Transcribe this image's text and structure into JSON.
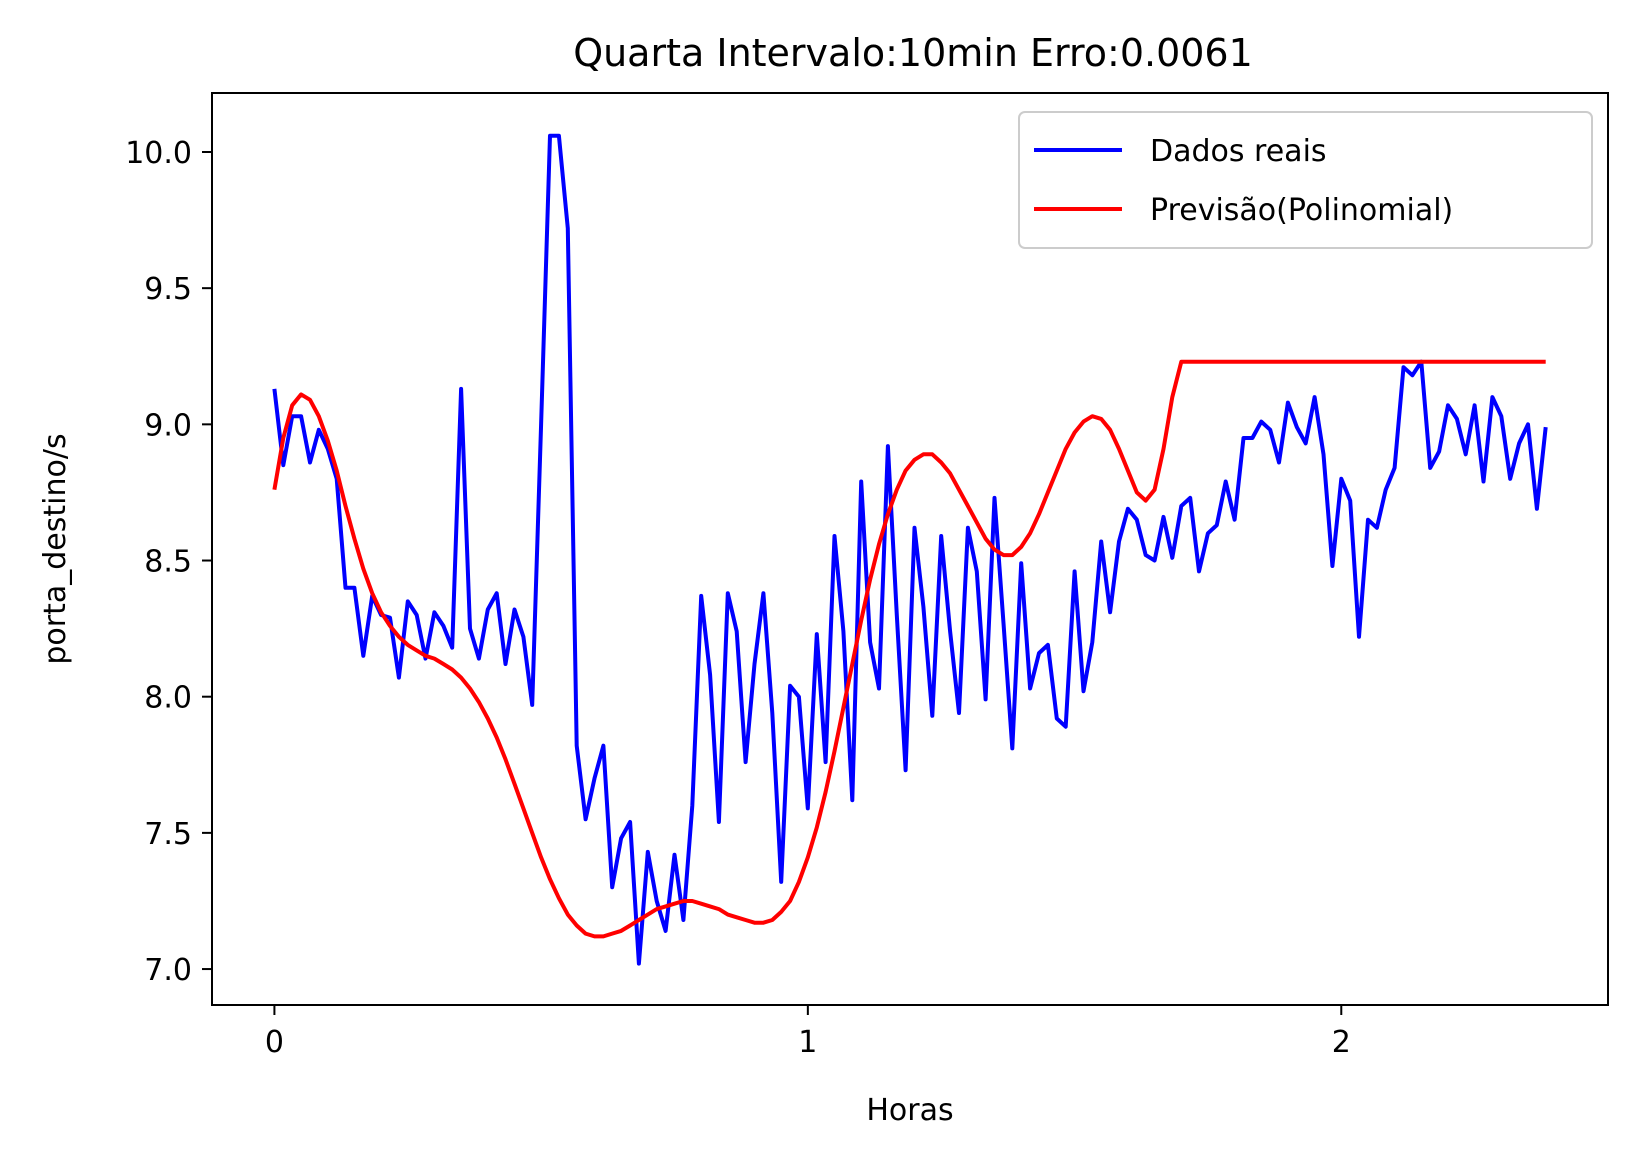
{
  "chart_data": {
    "type": "line",
    "title": "Quarta Intervalo:10min Erro:0.0061",
    "xlabel": "Horas",
    "ylabel": "porta_destino/s",
    "xlim": [
      -0.117,
      2.5
    ],
    "ylim": [
      6.868,
      10.2166
    ],
    "xticks": [
      0,
      1,
      2
    ],
    "xtick_labels": [
      "0",
      "1",
      "2"
    ],
    "yticks": [
      7.0,
      7.5,
      8.0,
      8.5,
      9.0,
      9.5,
      10.0
    ],
    "ytick_labels": [
      "7.0",
      "7.5",
      "8.0",
      "8.5",
      "9.0",
      "9.5",
      "10.0"
    ],
    "grid": false,
    "legend_position": "top-right",
    "series": [
      {
        "name": "Dados reais",
        "color": "#0000ff",
        "x": [
          0.0,
          0.0167,
          0.0333,
          0.05,
          0.0667,
          0.0833,
          0.1,
          0.1167,
          0.1333,
          0.15,
          0.1667,
          0.1833,
          0.2,
          0.2167,
          0.2333,
          0.25,
          0.2667,
          0.2833,
          0.3,
          0.3167,
          0.3333,
          0.35,
          0.3667,
          0.3833,
          0.4,
          0.4167,
          0.4333,
          0.45,
          0.4667,
          0.4833,
          0.5,
          0.5167,
          0.5333,
          0.55,
          0.5667,
          0.5833,
          0.6,
          0.6167,
          0.6333,
          0.65,
          0.6667,
          0.6833,
          0.7,
          0.7167,
          0.7333,
          0.75,
          0.7667,
          0.7833,
          0.8,
          0.8167,
          0.8333,
          0.85,
          0.8667,
          0.8833,
          0.9,
          0.9167,
          0.9333,
          0.95,
          0.9667,
          0.9833,
          1.0,
          1.0167,
          1.0333,
          1.05,
          1.0667,
          1.0833,
          1.1,
          1.1167,
          1.1333,
          1.15,
          1.1667,
          1.1833,
          1.2,
          1.2167,
          1.2333,
          1.25,
          1.2667,
          1.2833,
          1.3,
          1.3167,
          1.3333,
          1.35,
          1.3667,
          1.3833,
          1.4,
          1.4167,
          1.4333,
          1.45,
          1.4667,
          1.4833,
          1.5,
          1.5167,
          1.5333,
          1.55,
          1.5667,
          1.5833,
          1.6,
          1.6167,
          1.6333,
          1.65,
          1.6667,
          1.6833,
          1.7,
          1.7167,
          1.7333,
          1.75,
          1.7667,
          1.7833,
          1.8,
          1.8167,
          1.8333,
          1.85,
          1.8667,
          1.8833,
          1.9,
          1.9167,
          1.9333,
          1.95,
          1.9667,
          1.9833,
          2.0,
          2.0167,
          2.0333,
          2.05,
          2.0667,
          2.0833,
          2.1,
          2.1167,
          2.1333,
          2.15,
          2.1667,
          2.1833,
          2.2,
          2.2167,
          2.2333,
          2.25,
          2.2667,
          2.2833,
          2.3,
          2.3167,
          2.3333,
          2.35,
          2.3667,
          2.3833
        ],
        "y": [
          9.13,
          8.85,
          9.03,
          9.03,
          8.86,
          8.98,
          8.91,
          8.8,
          8.4,
          8.4,
          8.15,
          8.37,
          8.3,
          8.29,
          8.07,
          8.35,
          8.3,
          8.14,
          8.31,
          8.26,
          8.18,
          9.13,
          8.25,
          8.14,
          8.32,
          8.38,
          8.12,
          8.32,
          8.22,
          7.97,
          9.0,
          10.06,
          10.06,
          9.72,
          7.82,
          7.55,
          7.7,
          7.82,
          7.3,
          7.48,
          7.54,
          7.02,
          7.43,
          7.25,
          7.14,
          7.42,
          7.18,
          7.6,
          8.37,
          8.08,
          7.54,
          8.38,
          8.24,
          7.76,
          8.12,
          8.38,
          7.94,
          7.32,
          8.04,
          8.0,
          7.59,
          8.23,
          7.76,
          8.59,
          8.24,
          7.62,
          8.79,
          8.2,
          8.03,
          8.92,
          8.3,
          7.73,
          8.62,
          8.33,
          7.93,
          8.59,
          8.24,
          7.94,
          8.62,
          8.46,
          7.99,
          8.73,
          8.27,
          7.81,
          8.49,
          8.03,
          8.16,
          8.19,
          7.92,
          7.89,
          8.46,
          8.02,
          8.2,
          8.57,
          8.31,
          8.57,
          8.69,
          8.65,
          8.52,
          8.5,
          8.66,
          8.51,
          8.7,
          8.73,
          8.46,
          8.6,
          8.63,
          8.79,
          8.65,
          8.95,
          8.95,
          9.01,
          8.98,
          8.86,
          9.08,
          8.99,
          8.93,
          9.1,
          8.89,
          8.48,
          8.8,
          8.72,
          8.22,
          8.65,
          8.62,
          8.76,
          8.84,
          9.21,
          9.18,
          9.23,
          8.84,
          8.9,
          9.07,
          9.02,
          8.89,
          9.07,
          8.79,
          9.1,
          9.03,
          8.8,
          8.93,
          9.0,
          8.69,
          8.99
        ]
      },
      {
        "name": "Previsão(Polinomial)",
        "color": "#ff0000",
        "x": [
          0.0,
          0.0167,
          0.0333,
          0.05,
          0.0667,
          0.0833,
          0.1,
          0.1167,
          0.1333,
          0.15,
          0.1667,
          0.1833,
          0.2,
          0.2167,
          0.2333,
          0.25,
          0.2667,
          0.2833,
          0.3,
          0.3167,
          0.3333,
          0.35,
          0.3667,
          0.3833,
          0.4,
          0.4167,
          0.4333,
          0.45,
          0.4667,
          0.4833,
          0.5,
          0.5167,
          0.5333,
          0.55,
          0.5667,
          0.5833,
          0.6,
          0.6167,
          0.6333,
          0.65,
          0.6667,
          0.6833,
          0.7,
          0.7167,
          0.7333,
          0.75,
          0.7667,
          0.7833,
          0.8,
          0.8167,
          0.8333,
          0.85,
          0.8667,
          0.8833,
          0.9,
          0.9167,
          0.9333,
          0.95,
          0.9667,
          0.9833,
          1.0,
          1.0167,
          1.0333,
          1.05,
          1.0667,
          1.0833,
          1.1,
          1.1167,
          1.1333,
          1.15,
          1.1667,
          1.1833,
          1.2,
          1.2167,
          1.2333,
          1.25,
          1.2667,
          1.2833,
          1.3,
          1.3167,
          1.3333,
          1.35,
          1.3667,
          1.3833,
          1.4,
          1.4167,
          1.4333,
          1.45,
          1.4667,
          1.4833,
          1.5,
          1.5167,
          1.5333,
          1.55,
          1.5667,
          1.5833,
          1.6,
          1.6167,
          1.6333,
          1.65,
          1.6667,
          1.6833,
          1.7,
          1.7167,
          1.7333,
          1.75,
          1.7667,
          1.7833,
          1.8,
          1.8167,
          1.8333,
          1.85,
          1.8667,
          1.8833,
          1.9,
          1.9167,
          1.9333,
          1.95,
          1.9667,
          1.9833,
          2.0,
          2.0167,
          2.0333,
          2.05,
          2.0667,
          2.0833,
          2.1,
          2.1167,
          2.1333,
          2.15,
          2.1667,
          2.1833,
          2.2,
          2.2167,
          2.2333,
          2.25,
          2.2667,
          2.2833,
          2.3,
          2.3167,
          2.3333,
          2.35,
          2.3667,
          2.3833
        ],
        "y": [
          8.76,
          8.95,
          9.07,
          9.11,
          9.09,
          9.03,
          8.94,
          8.83,
          8.7,
          8.58,
          8.47,
          8.38,
          8.31,
          8.26,
          8.22,
          8.19,
          8.17,
          8.15,
          8.14,
          8.12,
          8.1,
          8.07,
          8.03,
          7.98,
          7.92,
          7.85,
          7.77,
          7.68,
          7.59,
          7.5,
          7.41,
          7.33,
          7.26,
          7.2,
          7.16,
          7.13,
          7.12,
          7.12,
          7.13,
          7.14,
          7.16,
          7.18,
          7.2,
          7.22,
          7.23,
          7.24,
          7.25,
          7.25,
          7.24,
          7.23,
          7.22,
          7.2,
          7.19,
          7.18,
          7.17,
          7.17,
          7.18,
          7.21,
          7.25,
          7.32,
          7.41,
          7.52,
          7.65,
          7.8,
          7.96,
          8.12,
          8.28,
          8.43,
          8.56,
          8.67,
          8.76,
          8.83,
          8.87,
          8.89,
          8.89,
          8.86,
          8.82,
          8.76,
          8.7,
          8.64,
          8.58,
          8.54,
          8.52,
          8.52,
          8.55,
          8.6,
          8.67,
          8.75,
          8.83,
          8.91,
          8.97,
          9.01,
          9.03,
          9.02,
          8.98,
          8.91,
          8.83,
          8.75,
          8.72,
          8.76,
          8.91,
          9.1,
          9.23,
          9.23,
          9.23,
          9.23,
          9.23,
          9.23,
          9.23,
          9.23,
          9.23,
          9.23,
          9.23,
          9.23,
          9.23,
          9.23,
          9.23,
          9.23,
          9.23,
          9.23,
          9.23,
          9.23,
          9.23,
          9.23,
          9.23,
          9.23,
          9.23,
          9.23,
          9.23,
          9.23,
          9.23,
          9.23,
          9.23,
          9.23,
          9.23,
          9.23,
          9.23,
          9.23,
          9.23,
          9.23,
          9.23,
          9.23,
          9.23,
          9.23
        ]
      }
    ]
  }
}
